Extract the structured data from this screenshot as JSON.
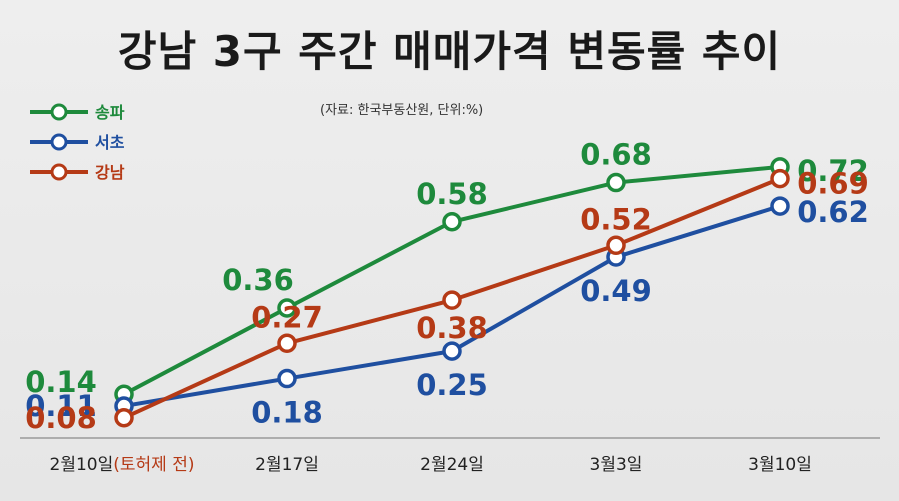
{
  "chart_data": {
    "type": "line",
    "title": "강남 3구 주간 매매가격 변동률 추이",
    "source": "(자료: 한국부동산원, 단위:%)",
    "categories": [
      "2월10일",
      "2월17일",
      "2월24일",
      "3월3일",
      "3월10일"
    ],
    "category_note": "(토허제 전)",
    "ylim": [
      0,
      0.8
    ],
    "grid": false,
    "legend_position": "top-left",
    "series": [
      {
        "name": "송파",
        "color": "#1e8a3c",
        "values": [
          0.14,
          0.36,
          0.58,
          0.68,
          0.72
        ]
      },
      {
        "name": "서초",
        "color": "#1f4fa0",
        "values": [
          0.11,
          0.18,
          0.25,
          0.49,
          0.62
        ]
      },
      {
        "name": "강남",
        "color": "#b53a16",
        "values": [
          0.08,
          0.27,
          0.38,
          0.52,
          0.69
        ]
      }
    ]
  }
}
